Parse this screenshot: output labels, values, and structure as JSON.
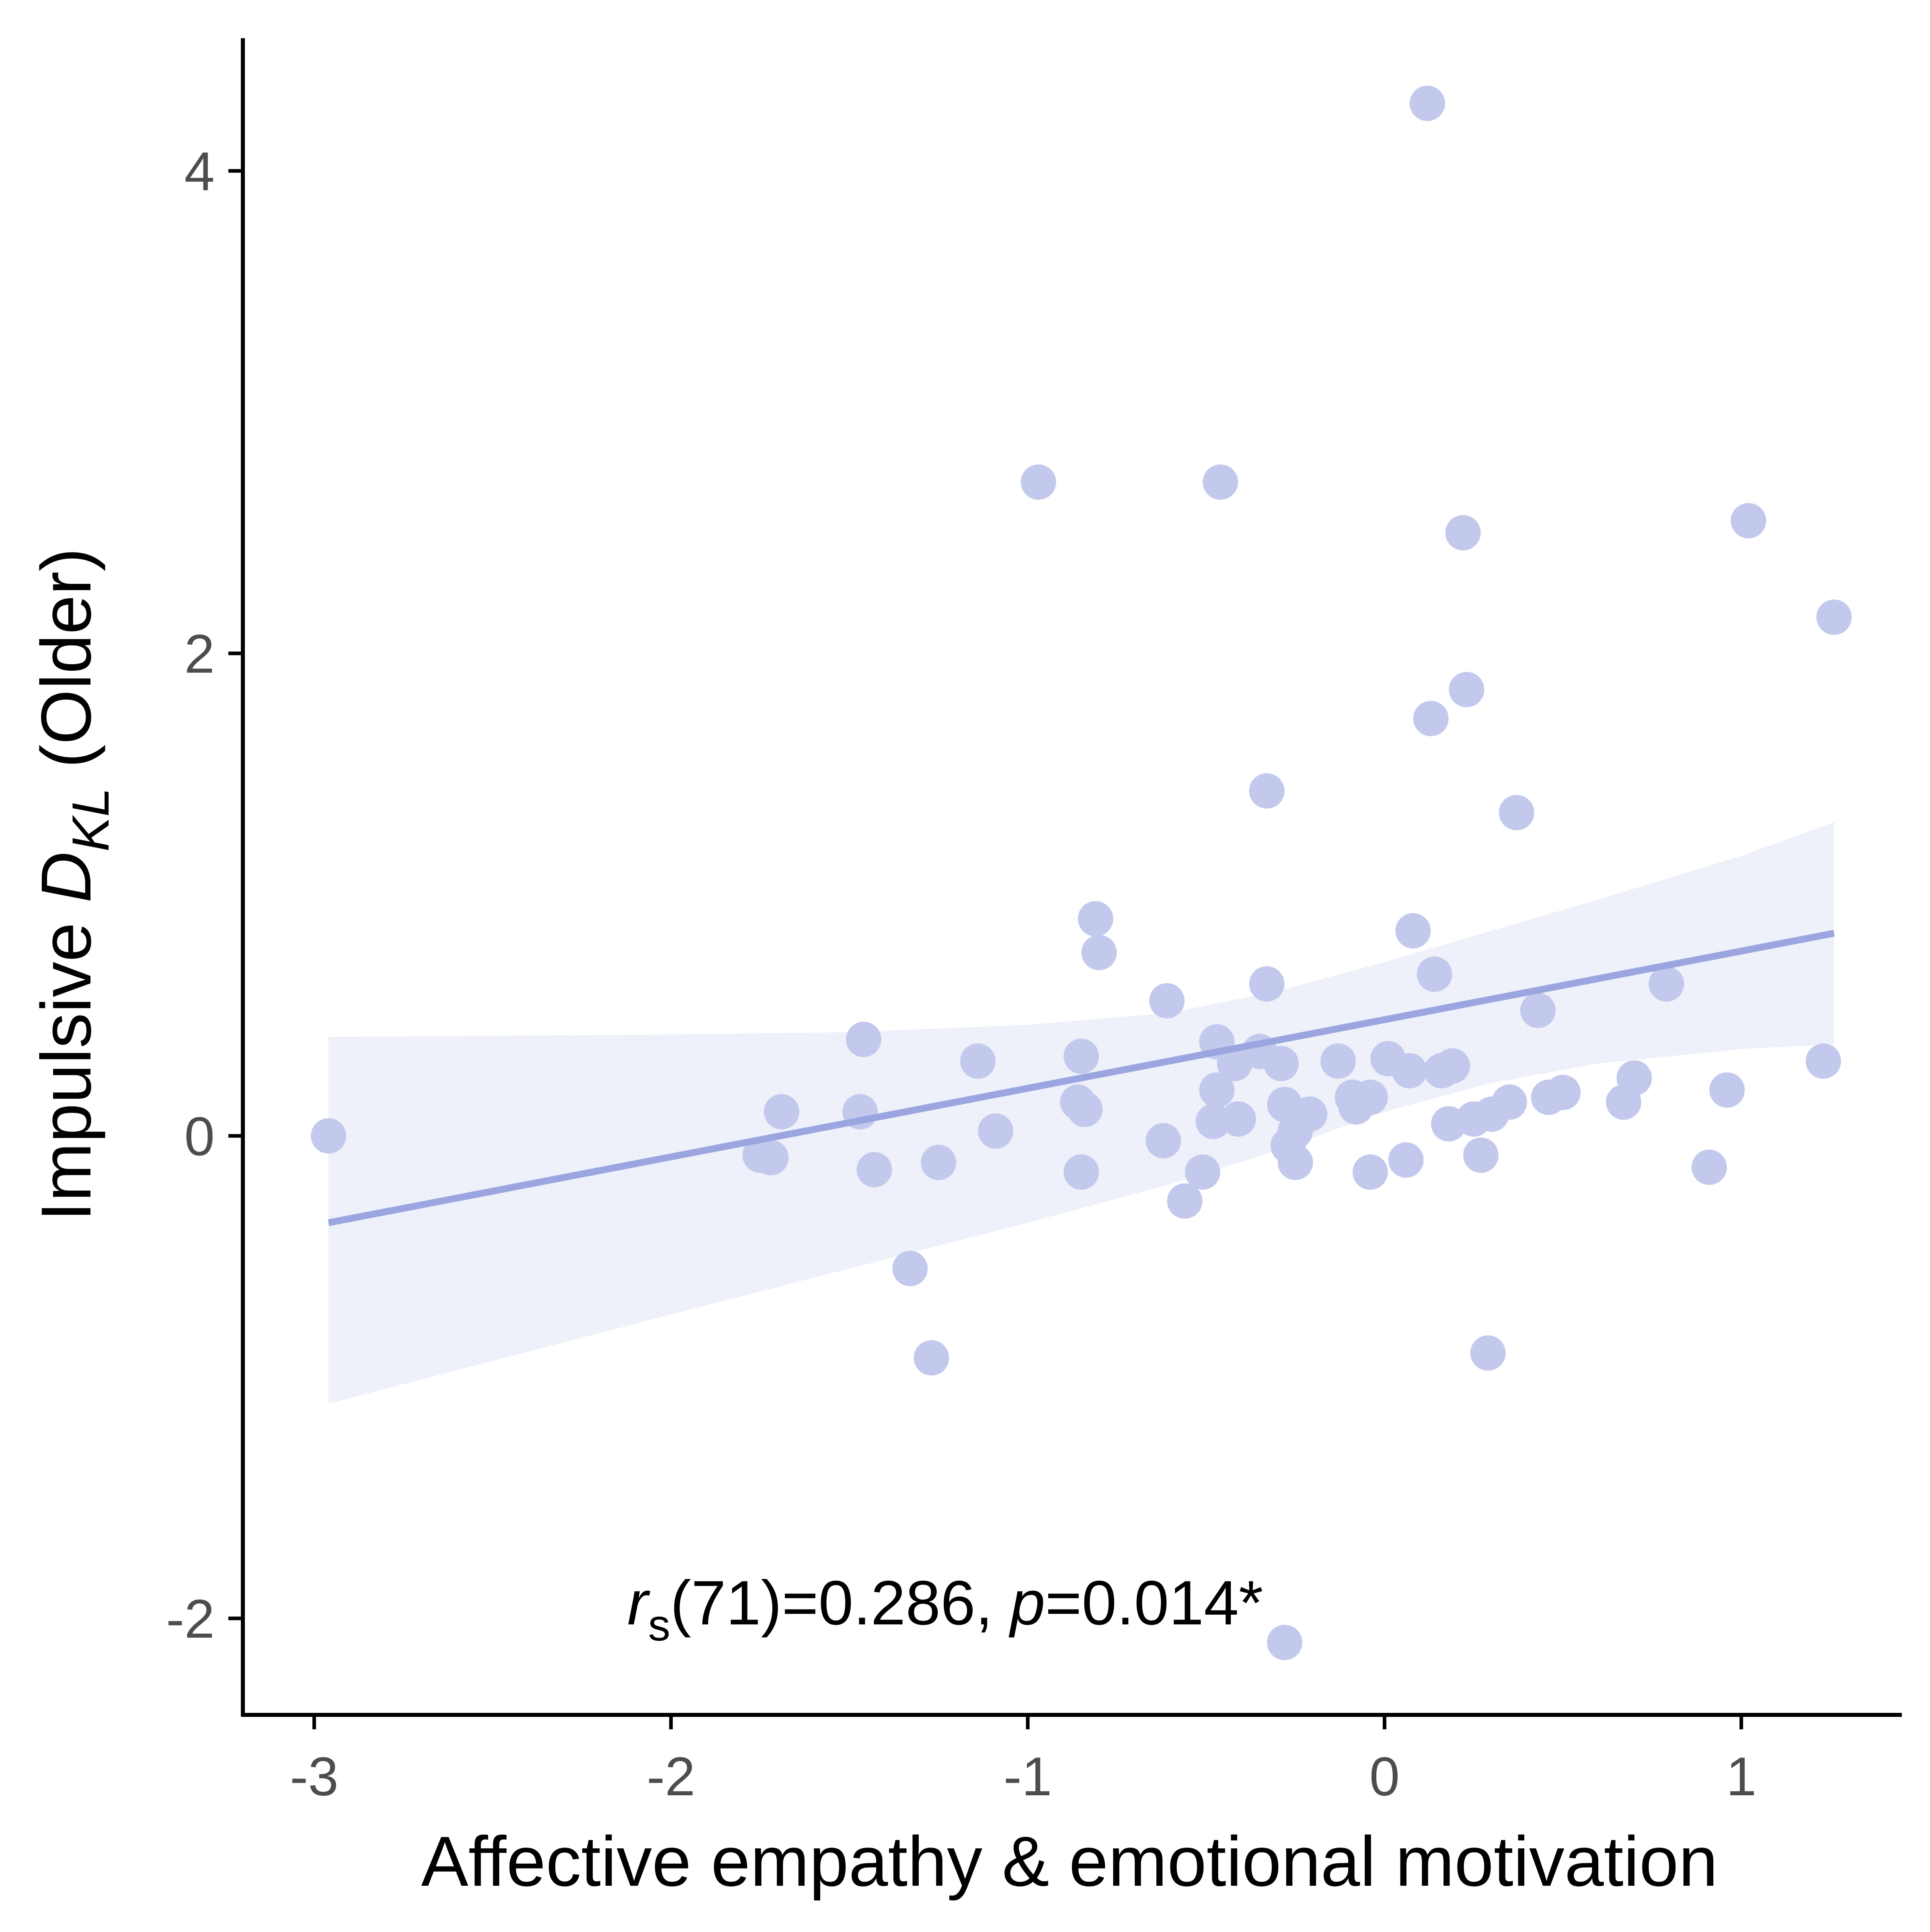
{
  "chart_data": {
    "type": "scatter",
    "xlabel": "Affective empathy & emotional motivation",
    "ylabel": {
      "prefix": "Impulsive ",
      "symbol": "D",
      "subscript": "KL",
      "suffix": " (Older)"
    },
    "annotation": {
      "r_symbol": "r",
      "r_subscript": "s",
      "r_rest": "(71)=0.286, ",
      "p_symbol": "p",
      "p_rest": "=0.014*"
    },
    "xlim": [
      -3.2,
      1.45
    ],
    "ylim": [
      -2.4,
      4.55
    ],
    "xticks": [
      {
        "value": -3,
        "label": "-3"
      },
      {
        "value": -2,
        "label": "-2"
      },
      {
        "value": -1,
        "label": "-1"
      },
      {
        "value": 0,
        "label": "0"
      },
      {
        "value": 1,
        "label": "1"
      }
    ],
    "yticks": [
      {
        "value": -2,
        "label": "-2"
      },
      {
        "value": 0,
        "label": "0"
      },
      {
        "value": 2,
        "label": "2"
      },
      {
        "value": 4,
        "label": "4"
      }
    ],
    "grid": false,
    "point_color": "#c3c9ec",
    "line_color": "#9ba6e1",
    "band_color": "#eef0fa",
    "axis_color": "#000000",
    "fit_line": {
      "x": [
        -2.96,
        1.26
      ],
      "y": [
        -0.36,
        0.84
      ]
    },
    "confidence_band": {
      "x": [
        -2.96,
        -2.0,
        -1.5,
        -1.0,
        -0.6,
        -0.3,
        0.0,
        0.3,
        0.6,
        1.0,
        1.26
      ],
      "upper": [
        0.41,
        0.42,
        0.43,
        0.46,
        0.51,
        0.6,
        0.72,
        0.85,
        0.98,
        1.16,
        1.3
      ],
      "lower": [
        -1.11,
        -0.74,
        -0.55,
        -0.36,
        -0.2,
        -0.06,
        0.1,
        0.22,
        0.3,
        0.36,
        0.38
      ]
    },
    "points": [
      {
        "x": -2.96,
        "y": 0.0
      },
      {
        "x": -1.75,
        "y": -0.08
      },
      {
        "x": -1.72,
        "y": -0.09
      },
      {
        "x": -1.69,
        "y": 0.1
      },
      {
        "x": -1.47,
        "y": 0.1
      },
      {
        "x": -1.46,
        "y": 0.4
      },
      {
        "x": -1.43,
        "y": -0.14
      },
      {
        "x": -1.33,
        "y": -0.55
      },
      {
        "x": -1.27,
        "y": -0.92
      },
      {
        "x": -1.25,
        "y": -0.11
      },
      {
        "x": -1.14,
        "y": 0.31
      },
      {
        "x": -1.09,
        "y": 0.02
      },
      {
        "x": -0.97,
        "y": 2.71
      },
      {
        "x": -0.85,
        "y": 0.33
      },
      {
        "x": -0.86,
        "y": 0.14
      },
      {
        "x": -0.84,
        "y": 0.11
      },
      {
        "x": -0.85,
        "y": -0.15
      },
      {
        "x": -0.81,
        "y": 0.9
      },
      {
        "x": -0.8,
        "y": 0.76
      },
      {
        "x": -0.62,
        "y": -0.02
      },
      {
        "x": -0.61,
        "y": 0.56
      },
      {
        "x": -0.56,
        "y": -0.27
      },
      {
        "x": -0.51,
        "y": -0.15
      },
      {
        "x": -0.48,
        "y": 0.06
      },
      {
        "x": -0.47,
        "y": 0.39
      },
      {
        "x": -0.47,
        "y": 0.19
      },
      {
        "x": -0.46,
        "y": 2.71
      },
      {
        "x": -0.42,
        "y": 0.3
      },
      {
        "x": -0.41,
        "y": 0.07
      },
      {
        "x": -0.35,
        "y": 0.35
      },
      {
        "x": -0.33,
        "y": 0.63
      },
      {
        "x": -0.33,
        "y": 1.43
      },
      {
        "x": -0.29,
        "y": 0.3
      },
      {
        "x": -0.28,
        "y": 0.13
      },
      {
        "x": -0.27,
        "y": -0.04
      },
      {
        "x": -0.28,
        "y": -2.1
      },
      {
        "x": -0.25,
        "y": 0.02
      },
      {
        "x": -0.25,
        "y": -0.11
      },
      {
        "x": -0.21,
        "y": 0.09
      },
      {
        "x": -0.13,
        "y": 0.31
      },
      {
        "x": -0.09,
        "y": 0.16
      },
      {
        "x": -0.08,
        "y": 0.12
      },
      {
        "x": -0.04,
        "y": 0.16
      },
      {
        "x": -0.04,
        "y": -0.15
      },
      {
        "x": 0.01,
        "y": 0.32
      },
      {
        "x": 0.06,
        "y": -0.1
      },
      {
        "x": 0.07,
        "y": 0.27
      },
      {
        "x": 0.08,
        "y": 0.85
      },
      {
        "x": 0.12,
        "y": 4.28
      },
      {
        "x": 0.13,
        "y": 1.73
      },
      {
        "x": 0.14,
        "y": 0.67
      },
      {
        "x": 0.16,
        "y": 0.27
      },
      {
        "x": 0.18,
        "y": 0.05
      },
      {
        "x": 0.19,
        "y": 0.29
      },
      {
        "x": 0.22,
        "y": 2.5
      },
      {
        "x": 0.23,
        "y": 1.85
      },
      {
        "x": 0.25,
        "y": 0.07
      },
      {
        "x": 0.27,
        "y": -0.08
      },
      {
        "x": 0.29,
        "y": -0.9
      },
      {
        "x": 0.3,
        "y": 0.09
      },
      {
        "x": 0.35,
        "y": 0.14
      },
      {
        "x": 0.37,
        "y": 1.34
      },
      {
        "x": 0.43,
        "y": 0.52
      },
      {
        "x": 0.46,
        "y": 0.16
      },
      {
        "x": 0.5,
        "y": 0.18
      },
      {
        "x": 0.67,
        "y": 0.14
      },
      {
        "x": 0.7,
        "y": 0.24
      },
      {
        "x": 0.79,
        "y": 0.63
      },
      {
        "x": 0.91,
        "y": -0.13
      },
      {
        "x": 0.96,
        "y": 0.19
      },
      {
        "x": 1.02,
        "y": 2.55
      },
      {
        "x": 1.23,
        "y": 0.31
      },
      {
        "x": 1.26,
        "y": 2.15
      }
    ]
  }
}
